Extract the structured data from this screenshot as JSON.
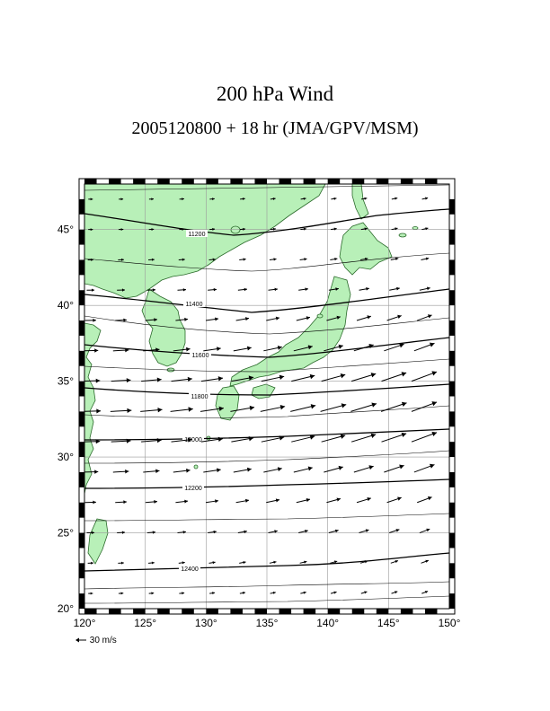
{
  "title": "200 hPa Wind",
  "subtitle": "2005120800 + 18 hr (JMA/GPV/MSM)",
  "legend": {
    "label": "30 m/s",
    "speed_ms": 30
  },
  "map": {
    "lon_range": [
      120,
      150
    ],
    "lat_range": [
      20,
      48
    ],
    "lon_ticks": [
      120,
      125,
      130,
      135,
      140,
      145,
      150
    ],
    "lat_ticks": [
      20,
      25,
      30,
      35,
      40,
      45
    ],
    "lon_labels": [
      "120°",
      "125°",
      "130°",
      "135°",
      "140°",
      "145°",
      "150°"
    ],
    "lat_labels": [
      "20°",
      "25°",
      "30°",
      "35°",
      "40°",
      "45°"
    ],
    "land_color": "#b8f0b8",
    "contour_labels": [
      "11200",
      "11400",
      "11600",
      "11800",
      "12000",
      "12200",
      "12400"
    ]
  }
}
